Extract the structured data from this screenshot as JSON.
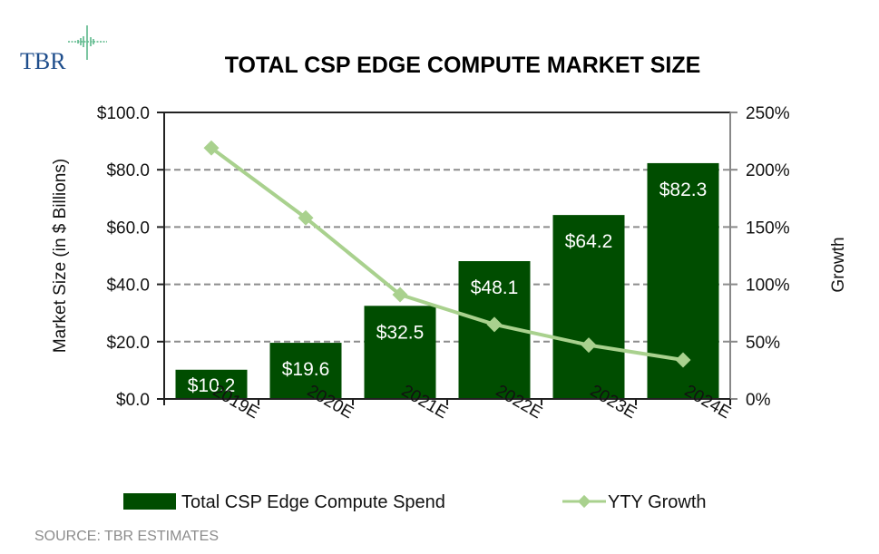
{
  "logo": {
    "text": "TBR"
  },
  "chart_data": {
    "type": "bar",
    "title": "TOTAL CSP EDGE COMPUTE MARKET SIZE",
    "categories": [
      "2019E",
      "2020E",
      "2021E",
      "2022E",
      "2023E",
      "2024E"
    ],
    "series": [
      {
        "name": "Total CSP Edge Compute Spend",
        "type": "bar",
        "axis": "left",
        "color": "#004d00",
        "values": [
          10.2,
          19.6,
          32.5,
          48.1,
          64.2,
          82.3
        ],
        "labels": [
          "$10.2",
          "$19.6",
          "$32.5",
          "$48.1",
          "$64.2",
          "$82.3"
        ]
      },
      {
        "name": "YTY Growth",
        "type": "line",
        "axis": "right",
        "color": "#a9d18e",
        "marker": "diamond",
        "values": [
          219,
          158,
          91,
          65,
          47,
          34
        ]
      }
    ],
    "ylabel": "Market Size (in $ Billions)",
    "ylim": [
      0,
      100
    ],
    "yticks": [
      "$0.0",
      "$20.0",
      "$40.0",
      "$60.0",
      "$80.0",
      "$100.0"
    ],
    "y2label": "Growth",
    "y2lim": [
      0,
      250
    ],
    "y2ticks": [
      "0%",
      "50%",
      "100%",
      "150%",
      "200%",
      "250%"
    ],
    "grid": true,
    "legend_position": "bottom",
    "source": "SOURCE: TBR ESTIMATES"
  }
}
